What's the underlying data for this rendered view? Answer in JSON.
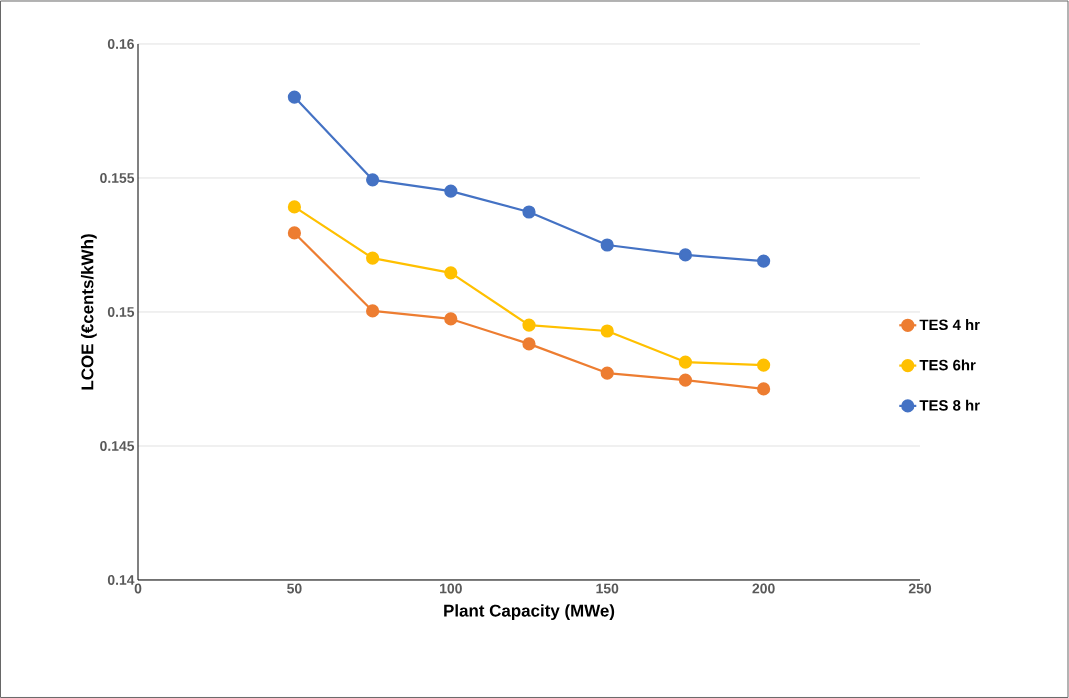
{
  "chart_data": {
    "type": "line",
    "xlabel": "Plant Capacity (MWe)",
    "ylabel": "LCOE (€cents/kWh)",
    "x": [
      50,
      75,
      100,
      125,
      150,
      175,
      200
    ],
    "series": [
      {
        "name": "TES  4 hr",
        "color": "#ed7d31",
        "values": [
          0.15295,
          0.15004,
          0.14974,
          0.14881,
          0.14772,
          0.14746,
          0.14713
        ]
      },
      {
        "name": "TES 6hr",
        "color": "#ffc000",
        "values": [
          0.15392,
          0.15201,
          0.15146,
          0.14951,
          0.14929,
          0.14813,
          0.14802
        ]
      },
      {
        "name": "TES 8 hr",
        "color": "#4472c4",
        "values": [
          0.15802,
          0.15493,
          0.15451,
          0.15373,
          0.1525,
          0.15213,
          0.1519
        ]
      }
    ],
    "xlim": [
      0,
      250
    ],
    "xticks": [
      0,
      50,
      100,
      150,
      200,
      250
    ],
    "ylim": [
      0.14,
      0.16
    ],
    "yticks": [
      0.14,
      0.145,
      0.15,
      0.155,
      0.16
    ],
    "grid": "y",
    "legend": "right",
    "marker": "circle",
    "line_style": "solid"
  }
}
